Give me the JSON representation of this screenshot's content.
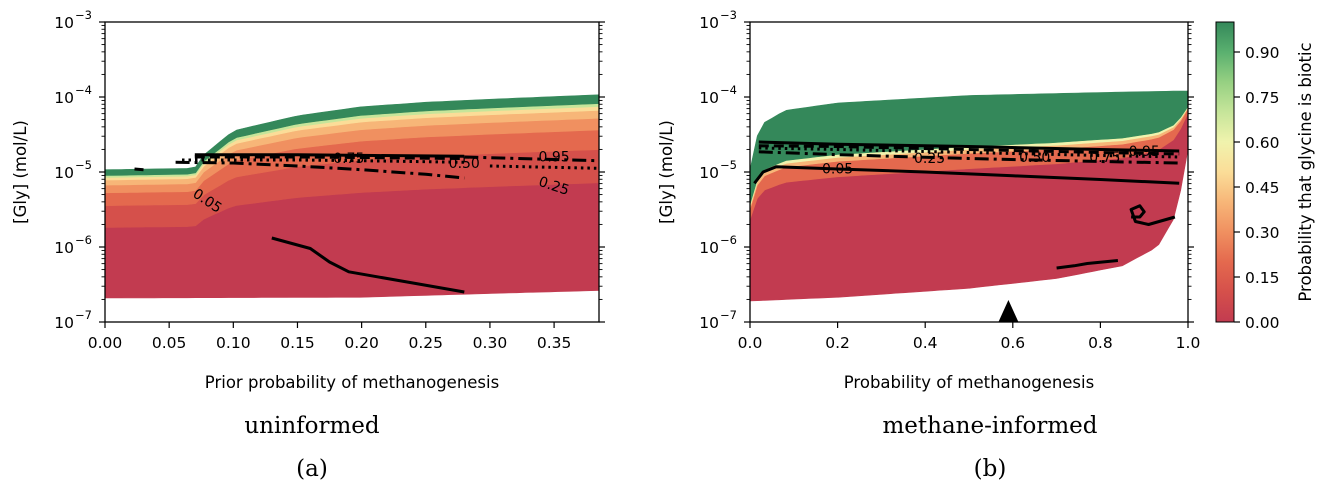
{
  "chart_data": [
    {
      "type": "contour",
      "panel": "a",
      "xlabel": "Prior probability of methanogenesis",
      "ylabel": "[Gly] (mol/L)",
      "xlim": [
        0.0,
        0.385
      ],
      "ylim_log10": [
        -7,
        -3
      ],
      "yscale": "log",
      "x_ticks": [
        "0.00",
        "0.05",
        "0.10",
        "0.15",
        "0.20",
        "0.25",
        "0.30",
        "0.35"
      ],
      "x_tick_values": [
        0,
        0.05,
        0.1,
        0.15,
        0.2,
        0.25,
        0.3,
        0.35
      ],
      "caption_title": "uninformed",
      "caption_label": "(a)",
      "region": {
        "upper_log10": [
          [
            0.0,
            -4.97
          ],
          [
            0.07,
            -4.95
          ],
          [
            0.075,
            -4.8
          ],
          [
            0.1,
            -4.45
          ],
          [
            0.15,
            -4.25
          ],
          [
            0.2,
            -4.13
          ],
          [
            0.25,
            -4.07
          ],
          [
            0.3,
            -4.03
          ],
          [
            0.385,
            -3.97
          ]
        ],
        "lower_log10": [
          [
            0.0,
            -6.68
          ],
          [
            0.2,
            -6.67
          ],
          [
            0.3,
            -6.62
          ],
          [
            0.385,
            -6.58
          ]
        ]
      },
      "contour_levels": [
        {
          "level": 0.05,
          "label": "0.05",
          "style": "solid",
          "points": [
            [
              0.13,
              -5.88
            ],
            [
              0.16,
              -6.02
            ],
            [
              0.175,
              -6.2
            ],
            [
              0.19,
              -6.33
            ],
            [
              0.21,
              -6.39
            ],
            [
              0.24,
              -6.48
            ],
            [
              0.28,
              -6.6
            ]
          ]
        },
        {
          "level": 0.25,
          "label": "0.25",
          "style": "dashdot",
          "points": [
            [
              0.055,
              -4.87
            ],
            [
              0.1,
              -4.88
            ],
            [
              0.15,
              -4.92
            ],
            [
              0.2,
              -4.97
            ],
            [
              0.25,
              -5.03
            ],
            [
              0.28,
              -5.08
            ]
          ]
        },
        {
          "level": 0.5,
          "label": "0.50",
          "style": "dotted",
          "points": [
            [
              0.06,
              -4.84
            ],
            [
              0.15,
              -4.84
            ],
            [
              0.2,
              -4.85
            ],
            [
              0.28,
              -4.87
            ]
          ]
        },
        {
          "level": 0.75,
          "label": "0.75",
          "style": "dashed",
          "points": [
            [
              0.07,
              -4.8
            ],
            [
              0.15,
              -4.8
            ],
            [
              0.21,
              -4.81
            ],
            [
              0.28,
              -4.82
            ]
          ]
        },
        {
          "level": 0.95,
          "label": "0.95",
          "style": "solid",
          "points": [
            [
              0.07,
              -4.77
            ],
            [
              0.15,
              -4.77
            ],
            [
              0.21,
              -4.78
            ],
            [
              0.28,
              -4.79
            ]
          ]
        },
        {
          "level": 0.05,
          "style": "solid_short",
          "points": [
            [
              0.023,
              -4.96
            ],
            [
              0.03,
              -4.97
            ]
          ]
        }
      ],
      "contour_labels": [
        {
          "text": "0.05",
          "x": 0.08,
          "y": -5.38,
          "rotate": 34
        },
        {
          "text": "0.75",
          "x": 0.19,
          "y": -4.81,
          "rotate": 0
        },
        {
          "text": "0.50",
          "x": 0.28,
          "y": -4.88,
          "rotate": 0
        },
        {
          "text": "0.95",
          "x": 0.35,
          "y": -4.79,
          "rotate": 0
        },
        {
          "text": "0.25",
          "x": 0.35,
          "y": -5.18,
          "rotate": 18
        }
      ],
      "extra_lines": [
        {
          "style": "dashdot",
          "points": [
            [
              0.28,
              -4.8
            ],
            [
              0.385,
              -4.85
            ]
          ]
        },
        {
          "style": "dotted",
          "points": [
            [
              0.3,
              -4.92
            ],
            [
              0.385,
              -4.95
            ]
          ]
        }
      ]
    },
    {
      "type": "contour",
      "panel": "b",
      "xlabel": "Probability of methanogenesis",
      "ylabel": "[Gly] (mol/L)",
      "xlim": [
        0.0,
        1.0
      ],
      "ylim_log10": [
        -7,
        -3
      ],
      "yscale": "log",
      "x_ticks": [
        "0.0",
        "0.2",
        "0.4",
        "0.6",
        "0.8",
        "1.0"
      ],
      "x_tick_values": [
        0,
        0.2,
        0.4,
        0.6,
        0.8,
        1.0
      ],
      "caption_title": "methane-informed",
      "caption_label": "(b)",
      "marker": {
        "shape": "triangle",
        "x": 0.59
      },
      "region": {
        "upper_log10": [
          [
            0.0,
            -4.97
          ],
          [
            0.01,
            -4.6
          ],
          [
            0.03,
            -4.35
          ],
          [
            0.08,
            -4.18
          ],
          [
            0.2,
            -4.08
          ],
          [
            0.5,
            -3.98
          ],
          [
            0.8,
            -3.94
          ],
          [
            0.98,
            -3.92
          ],
          [
            1.0,
            -3.92
          ]
        ],
        "lower_log10": [
          [
            0.0,
            -6.72
          ],
          [
            0.2,
            -6.67
          ],
          [
            0.5,
            -6.55
          ],
          [
            0.7,
            -6.42
          ],
          [
            0.85,
            -6.25
          ],
          [
            0.93,
            -6.0
          ],
          [
            0.97,
            -5.6
          ],
          [
            0.985,
            -5.2
          ],
          [
            1.0,
            -4.7
          ]
        ]
      },
      "contour_levels": [
        {
          "level": 0.05,
          "label": "0.05",
          "style": "solid",
          "points": [
            [
              0.01,
              -5.15
            ],
            [
              0.03,
              -5.0
            ],
            [
              0.06,
              -4.93
            ],
            [
              0.2,
              -4.96
            ],
            [
              0.4,
              -5.0
            ],
            [
              0.6,
              -5.05
            ],
            [
              0.8,
              -5.1
            ],
            [
              0.98,
              -5.15
            ]
          ]
        },
        {
          "level": 0.05,
          "style": "solid",
          "points": [
            [
              0.87,
              -5.6
            ],
            [
              0.89,
              -5.6
            ],
            [
              0.9,
              -5.53
            ],
            [
              0.89,
              -5.45
            ],
            [
              0.87,
              -5.5
            ],
            [
              0.88,
              -5.66
            ],
            [
              0.91,
              -5.7
            ],
            [
              0.97,
              -5.6
            ]
          ]
        },
        {
          "level": 0.05,
          "style": "solid",
          "points": [
            [
              0.7,
              -6.28
            ],
            [
              0.74,
              -6.25
            ],
            [
              0.77,
              -6.22
            ],
            [
              0.84,
              -6.18
            ]
          ]
        },
        {
          "level": 0.25,
          "label": "0.25",
          "style": "dashdot",
          "points": [
            [
              0.02,
              -4.73
            ],
            [
              0.2,
              -4.77
            ],
            [
              0.5,
              -4.82
            ],
            [
              0.8,
              -4.86
            ],
            [
              0.98,
              -4.88
            ]
          ]
        },
        {
          "level": 0.5,
          "label": "0.50",
          "style": "dotted",
          "points": [
            [
              0.02,
              -4.68
            ],
            [
              0.2,
              -4.7
            ],
            [
              0.5,
              -4.74
            ],
            [
              0.8,
              -4.78
            ],
            [
              0.98,
              -4.8
            ]
          ]
        },
        {
          "level": 0.75,
          "label": "0.75",
          "style": "dashed",
          "points": [
            [
              0.02,
              -4.65
            ],
            [
              0.2,
              -4.66
            ],
            [
              0.5,
              -4.7
            ],
            [
              0.8,
              -4.74
            ],
            [
              0.98,
              -4.76
            ]
          ]
        },
        {
          "level": 0.95,
          "label": "0.95",
          "style": "solid",
          "points": [
            [
              0.02,
              -4.6
            ],
            [
              0.2,
              -4.63
            ],
            [
              0.5,
              -4.66
            ],
            [
              0.8,
              -4.7
            ],
            [
              0.98,
              -4.72
            ]
          ]
        }
      ],
      "contour_labels": [
        {
          "text": "0.05",
          "x": 0.2,
          "y": -4.95,
          "rotate": 0
        },
        {
          "text": "0.25",
          "x": 0.41,
          "y": -4.81,
          "rotate": 0
        },
        {
          "text": "0.50",
          "x": 0.65,
          "y": -4.8,
          "rotate": 0
        },
        {
          "text": "0.75",
          "x": 0.81,
          "y": -4.8,
          "rotate": 0
        },
        {
          "text": "0.95",
          "x": 0.9,
          "y": -4.72,
          "rotate": 0
        }
      ],
      "extra_lines": []
    }
  ],
  "y_tick_labels": [
    "10",
    "10",
    "10",
    "10",
    "10"
  ],
  "y_tick_exponents": [
    "−7",
    "−6",
    "−5",
    "−4",
    "−3"
  ],
  "y_tick_values_log10": [
    -7,
    -6,
    -5,
    -4,
    -3
  ],
  "colorbar": {
    "label": "Probability that glycine is biotic",
    "ticks": [
      "0.00",
      "0.15",
      "0.30",
      "0.45",
      "0.60",
      "0.75",
      "0.90"
    ],
    "tick_values": [
      0,
      0.15,
      0.3,
      0.45,
      0.6,
      0.75,
      0.9
    ],
    "range": [
      0,
      1
    ],
    "colors": [
      "#c23b50",
      "#d5504b",
      "#e4694e",
      "#f09060",
      "#f7b678",
      "#fbdd98",
      "#f0f3ad",
      "#c6e59a",
      "#96d082",
      "#5ab06f",
      "#34885a"
    ]
  },
  "palette": {
    "contour_line": "#000000",
    "high": "#35885b"
  }
}
